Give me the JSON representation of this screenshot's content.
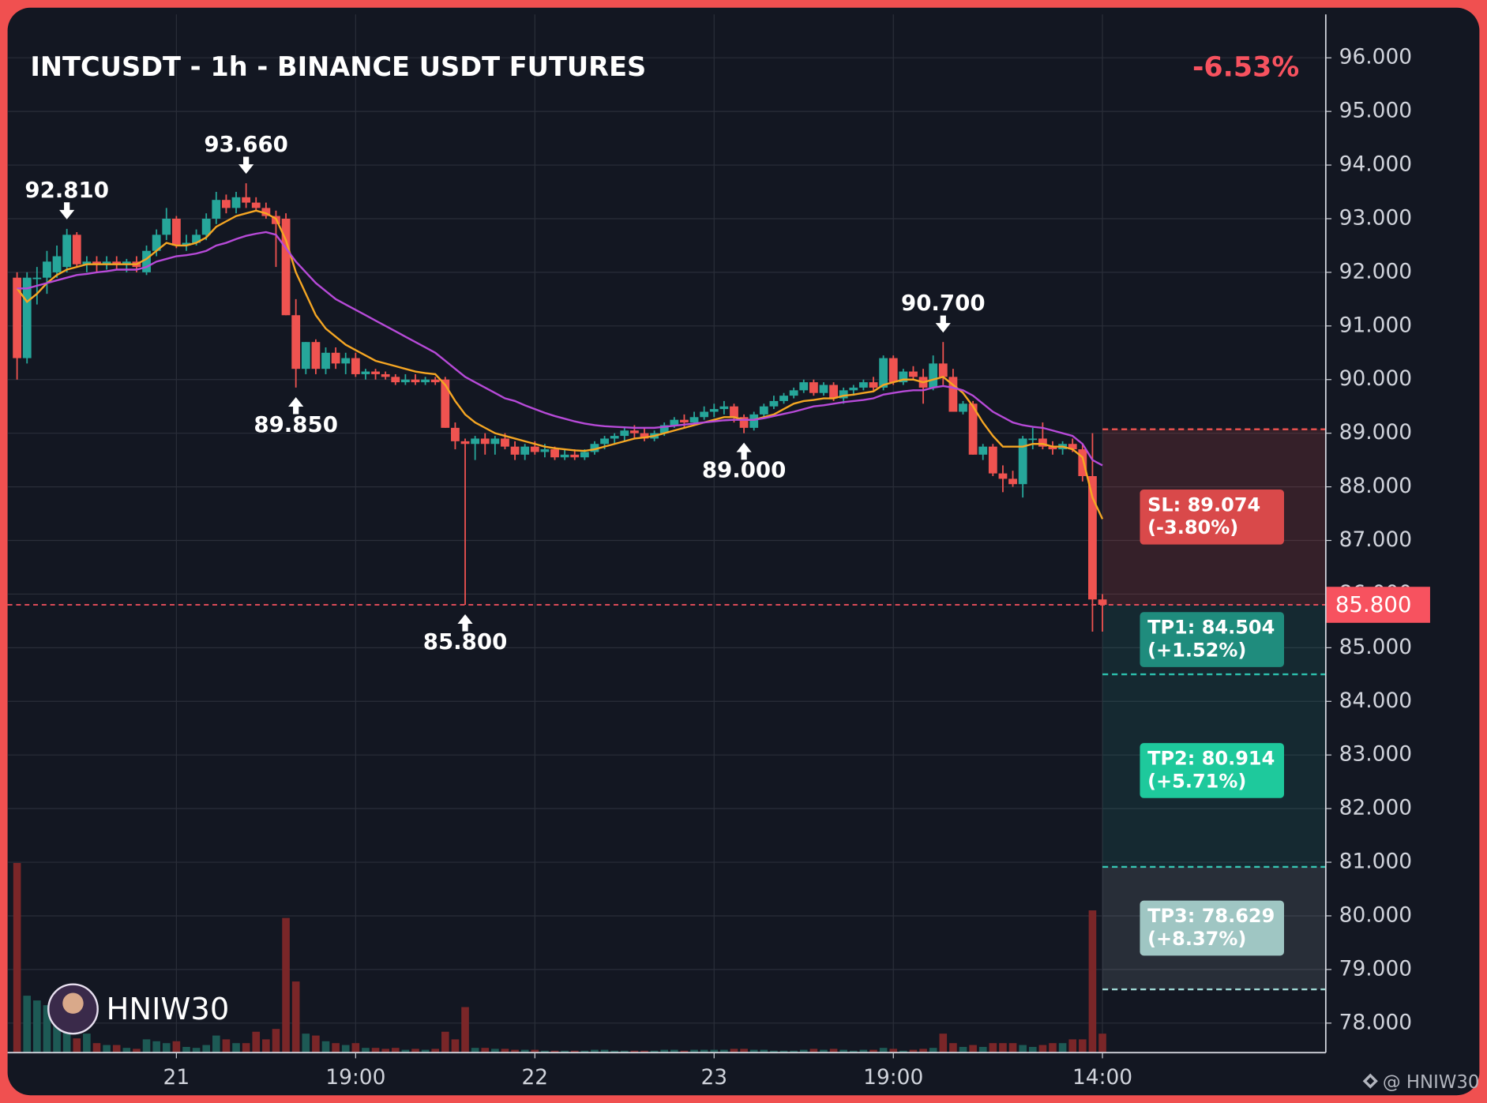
{
  "chart_data": {
    "type": "candlestick",
    "title": "INTCUSDT - 1h - BINANCE USDT FUTURES",
    "change": "-6.53%",
    "change_color": "#f7525f",
    "watermark": "HNIW30",
    "footer": "@ HNIW30",
    "up_color": "#26a69a",
    "down_color": "#ef5350",
    "ylim": [
      77.45,
      96.81
    ],
    "yticks": [
      {
        "value": 78,
        "label": "78.000"
      },
      {
        "value": 79,
        "label": "79.000"
      },
      {
        "value": 80,
        "label": "80.000"
      },
      {
        "value": 81,
        "label": "81.000"
      },
      {
        "value": 82,
        "label": "82.000"
      },
      {
        "value": 83,
        "label": "83.000"
      },
      {
        "value": 84,
        "label": "84.000"
      },
      {
        "value": 85,
        "label": "85.000"
      },
      {
        "value": 86,
        "label": "86.000"
      },
      {
        "value": 87,
        "label": "87.000"
      },
      {
        "value": 88,
        "label": "88.000"
      },
      {
        "value": 89,
        "label": "89.000"
      },
      {
        "value": 90,
        "label": "90.000"
      },
      {
        "value": 91,
        "label": "91.000"
      },
      {
        "value": 92,
        "label": "92.000"
      },
      {
        "value": 93,
        "label": "93.000"
      },
      {
        "value": 94,
        "label": "94.000"
      },
      {
        "value": 95,
        "label": "95.000"
      },
      {
        "value": 96,
        "label": "96.000"
      }
    ],
    "grid": true,
    "categories": [
      null,
      null,
      null,
      null,
      null,
      null,
      null,
      null,
      null,
      null,
      null,
      null,
      null,
      null,
      null,
      null,
      "21",
      null,
      null,
      null,
      null,
      null,
      null,
      null,
      null,
      null,
      null,
      null,
      null,
      null,
      null,
      null,
      null,
      null,
      "19:00",
      null,
      null,
      null,
      null,
      null,
      null,
      null,
      null,
      null,
      null,
      null,
      null,
      null,
      null,
      null,
      null,
      null,
      "22",
      null,
      null,
      null,
      null,
      null,
      null,
      null,
      null,
      null,
      null,
      null,
      null,
      null,
      null,
      null,
      null,
      null,
      "23",
      null,
      null,
      null,
      null,
      null,
      null,
      null,
      null,
      null,
      null,
      null,
      null,
      null,
      null,
      null,
      null,
      null,
      "19:00",
      null,
      null,
      null,
      null,
      null,
      null,
      null,
      null,
      null,
      null,
      null,
      null,
      null,
      null,
      null,
      null,
      null,
      null,
      null,
      null,
      "14:00"
    ],
    "open": [
      91.9,
      90.4,
      91.9,
      91.9,
      92.0,
      92.1,
      92.7,
      92.15,
      92.2,
      92.15,
      92.2,
      92.15,
      92.2,
      92.0,
      92.4,
      92.7,
      93.0,
      92.5,
      92.55,
      92.7,
      93.0,
      93.35,
      93.2,
      93.4,
      93.3,
      93.2,
      93.05,
      93.0,
      91.2,
      90.2,
      90.7,
      90.2,
      90.5,
      90.3,
      90.4,
      90.1,
      90.15,
      90.1,
      90.05,
      89.95,
      90.0,
      89.95,
      90.0,
      90.0,
      89.1,
      88.85,
      88.8,
      88.9,
      88.8,
      88.9,
      88.75,
      88.6,
      88.75,
      88.65,
      88.7,
      88.55,
      88.6,
      88.55,
      88.65,
      88.8,
      88.9,
      88.95,
      89.05,
      89.0,
      88.9,
      89.0,
      89.15,
      89.25,
      89.2,
      89.3,
      89.4,
      89.45,
      89.5,
      89.3,
      89.1,
      89.35,
      89.5,
      89.6,
      89.7,
      89.8,
      89.95,
      89.75,
      89.9,
      89.65,
      89.8,
      89.85,
      89.95,
      89.85,
      90.4,
      89.95,
      90.15,
      90.05,
      89.85,
      90.3,
      90.05,
      89.4,
      89.55,
      88.6,
      88.75,
      88.25,
      88.15,
      88.05,
      88.9,
      88.9,
      88.75,
      88.7,
      88.8,
      88.7,
      88.2,
      85.9
    ],
    "high": [
      92.0,
      92.0,
      92.1,
      92.4,
      92.5,
      92.81,
      92.75,
      92.3,
      92.3,
      92.3,
      92.3,
      92.25,
      92.3,
      92.5,
      92.8,
      93.2,
      93.05,
      92.7,
      92.8,
      93.1,
      93.5,
      93.45,
      93.5,
      93.66,
      93.4,
      93.3,
      93.15,
      93.1,
      91.5,
      90.7,
      90.75,
      90.6,
      90.6,
      90.5,
      90.5,
      90.2,
      90.2,
      90.15,
      90.1,
      90.1,
      90.1,
      90.05,
      90.05,
      90.05,
      89.2,
      88.9,
      88.95,
      89.0,
      88.95,
      89.0,
      88.85,
      88.8,
      88.85,
      88.8,
      88.75,
      88.7,
      88.7,
      88.7,
      88.85,
      88.95,
      89.0,
      89.1,
      89.15,
      89.1,
      89.05,
      89.2,
      89.3,
      89.35,
      89.4,
      89.5,
      89.55,
      89.6,
      89.55,
      89.35,
      89.4,
      89.55,
      89.7,
      89.75,
      89.85,
      90.0,
      90.0,
      89.95,
      89.95,
      89.85,
      89.9,
      90.0,
      90.05,
      90.45,
      90.45,
      90.2,
      90.25,
      90.2,
      90.45,
      90.7,
      90.2,
      89.6,
      89.6,
      88.8,
      88.8,
      88.4,
      88.3,
      88.95,
      89.1,
      89.2,
      88.85,
      88.85,
      88.9,
      88.8,
      89.0,
      86.0
    ],
    "low": [
      90.0,
      90.3,
      91.4,
      91.6,
      91.9,
      92.0,
      92.1,
      92.0,
      92.0,
      92.05,
      92.05,
      92.0,
      92.0,
      91.95,
      92.3,
      92.6,
      92.45,
      92.4,
      92.5,
      92.6,
      92.9,
      93.1,
      93.1,
      93.2,
      93.15,
      93.0,
      92.1,
      91.2,
      89.85,
      90.1,
      90.1,
      90.1,
      90.2,
      90.1,
      90.05,
      90.0,
      90.0,
      90.0,
      89.9,
      89.9,
      89.9,
      89.9,
      89.9,
      89.1,
      88.7,
      85.8,
      88.5,
      88.6,
      88.6,
      88.7,
      88.5,
      88.5,
      88.6,
      88.55,
      88.5,
      88.5,
      88.5,
      88.5,
      88.6,
      88.7,
      88.8,
      88.85,
      88.9,
      88.85,
      88.85,
      88.95,
      89.1,
      89.1,
      89.15,
      89.25,
      89.3,
      89.35,
      89.2,
      89.0,
      89.05,
      89.3,
      89.45,
      89.55,
      89.65,
      89.75,
      89.7,
      89.7,
      89.6,
      89.55,
      89.7,
      89.8,
      89.8,
      89.8,
      89.9,
      89.9,
      90.0,
      89.55,
      89.8,
      89.9,
      89.4,
      89.35,
      88.6,
      88.5,
      88.2,
      87.9,
      88.0,
      87.8,
      88.7,
      88.7,
      88.6,
      88.6,
      88.65,
      88.1,
      85.3,
      85.3
    ],
    "close": [
      90.4,
      91.9,
      91.9,
      92.2,
      92.3,
      92.7,
      92.15,
      92.2,
      92.15,
      92.2,
      92.15,
      92.2,
      92.1,
      92.4,
      92.7,
      93.0,
      92.5,
      92.55,
      92.7,
      93.0,
      93.35,
      93.2,
      93.4,
      93.3,
      93.2,
      93.05,
      92.9,
      91.2,
      90.2,
      90.7,
      90.2,
      90.5,
      90.3,
      90.4,
      90.1,
      90.15,
      90.1,
      90.05,
      89.95,
      90.0,
      89.95,
      90.0,
      89.95,
      89.1,
      88.85,
      88.8,
      88.9,
      88.8,
      88.9,
      88.75,
      88.6,
      88.75,
      88.65,
      88.7,
      88.55,
      88.6,
      88.55,
      88.65,
      88.8,
      88.9,
      88.95,
      89.05,
      89.0,
      88.9,
      89.0,
      89.15,
      89.25,
      89.2,
      89.3,
      89.4,
      89.45,
      89.5,
      89.3,
      89.1,
      89.35,
      89.5,
      89.6,
      89.7,
      89.8,
      89.95,
      89.75,
      89.9,
      89.65,
      89.8,
      89.85,
      89.95,
      89.85,
      90.4,
      89.95,
      90.15,
      90.05,
      89.85,
      90.3,
      90.05,
      89.4,
      89.55,
      88.6,
      88.75,
      88.25,
      88.15,
      88.05,
      88.9,
      88.9,
      88.75,
      88.7,
      88.8,
      88.7,
      88.2,
      85.9,
      85.8
    ],
    "volume": [
      200,
      60,
      55,
      50,
      45,
      40,
      15,
      20,
      10,
      8,
      8,
      5,
      4,
      14,
      12,
      10,
      12,
      6,
      5,
      8,
      18,
      14,
      10,
      10,
      22,
      14,
      25,
      142,
      75,
      20,
      18,
      12,
      10,
      8,
      10,
      5,
      5,
      4,
      5,
      3,
      4,
      3,
      4,
      22,
      14,
      48,
      5,
      5,
      4,
      4,
      3,
      3,
      3,
      2,
      2,
      2,
      2,
      2,
      3,
      3,
      2,
      2,
      2,
      2,
      2,
      3,
      3,
      2,
      3,
      3,
      3,
      3,
      4,
      4,
      3,
      3,
      2,
      2,
      2,
      3,
      4,
      3,
      4,
      3,
      2,
      3,
      3,
      5,
      4,
      2,
      3,
      4,
      5,
      20,
      10,
      6,
      8,
      6,
      10,
      10,
      10,
      8,
      6,
      8,
      10,
      10,
      14,
      14,
      150,
      20
    ],
    "volume_up_color": "#1d5a55",
    "volume_down_color": "#7a2628",
    "moving_averages": [
      {
        "color": "#f5a623",
        "values": [
          91.7,
          91.45,
          91.6,
          91.8,
          91.95,
          92.05,
          92.1,
          92.15,
          92.15,
          92.15,
          92.15,
          92.15,
          92.15,
          92.25,
          92.4,
          92.55,
          92.5,
          92.5,
          92.55,
          92.65,
          92.85,
          92.95,
          93.05,
          93.1,
          93.15,
          93.1,
          93.0,
          92.6,
          92.0,
          91.6,
          91.2,
          90.95,
          90.8,
          90.65,
          90.55,
          90.45,
          90.35,
          90.3,
          90.25,
          90.2,
          90.15,
          90.12,
          90.1,
          89.9,
          89.6,
          89.35,
          89.2,
          89.1,
          89.0,
          88.95,
          88.9,
          88.85,
          88.8,
          88.75,
          88.72,
          88.7,
          88.68,
          88.67,
          88.7,
          88.75,
          88.8,
          88.85,
          88.9,
          88.92,
          88.95,
          89.0,
          89.05,
          89.1,
          89.15,
          89.2,
          89.25,
          89.3,
          89.3,
          89.25,
          89.25,
          89.3,
          89.35,
          89.45,
          89.55,
          89.6,
          89.62,
          89.65,
          89.65,
          89.7,
          89.72,
          89.75,
          89.78,
          89.9,
          89.95,
          90.0,
          90.0,
          89.95,
          90.0,
          90.05,
          89.9,
          89.75,
          89.5,
          89.2,
          88.95,
          88.75,
          88.75,
          88.75,
          88.8,
          88.8,
          88.75,
          88.75,
          88.7,
          88.55,
          87.8,
          87.4
        ]
      },
      {
        "color": "#b74ad8",
        "values": [
          91.7,
          91.7,
          91.75,
          91.8,
          91.85,
          91.9,
          91.95,
          91.97,
          92.0,
          92.02,
          92.05,
          92.05,
          92.05,
          92.1,
          92.2,
          92.25,
          92.3,
          92.32,
          92.35,
          92.4,
          92.5,
          92.55,
          92.62,
          92.68,
          92.72,
          92.75,
          92.7,
          92.45,
          92.2,
          92.0,
          91.8,
          91.65,
          91.5,
          91.4,
          91.3,
          91.2,
          91.1,
          91.0,
          90.9,
          90.8,
          90.7,
          90.6,
          90.5,
          90.35,
          90.2,
          90.05,
          89.95,
          89.85,
          89.75,
          89.65,
          89.6,
          89.52,
          89.45,
          89.38,
          89.32,
          89.27,
          89.22,
          89.18,
          89.15,
          89.13,
          89.12,
          89.11,
          89.1,
          89.1,
          89.1,
          89.12,
          89.14,
          89.16,
          89.18,
          89.2,
          89.22,
          89.24,
          89.25,
          89.25,
          89.25,
          89.28,
          89.32,
          89.36,
          89.4,
          89.45,
          89.5,
          89.52,
          89.55,
          89.58,
          89.6,
          89.62,
          89.65,
          89.72,
          89.75,
          89.78,
          89.8,
          89.8,
          89.85,
          89.88,
          89.85,
          89.8,
          89.7,
          89.55,
          89.4,
          89.3,
          89.2,
          89.15,
          89.12,
          89.1,
          89.05,
          89.0,
          88.95,
          88.8,
          88.5,
          88.4
        ]
      }
    ],
    "markers": [
      {
        "candle": 5,
        "value": 92.81,
        "label": "92.810",
        "side": "above"
      },
      {
        "candle": 23,
        "value": 93.66,
        "label": "93.660",
        "side": "above"
      },
      {
        "candle": 28,
        "value": 89.85,
        "label": "89.850",
        "side": "below"
      },
      {
        "candle": 45,
        "value": 85.8,
        "label": "85.800",
        "side": "below"
      },
      {
        "candle": 73,
        "value": 89.0,
        "label": "89.000",
        "side": "below"
      },
      {
        "candle": 93,
        "value": 90.7,
        "label": "90.700",
        "side": "above"
      }
    ],
    "last_price": {
      "value": 85.8,
      "label": "85.800",
      "color": "#f7525f"
    },
    "levels": [
      {
        "name": "SL: 89.074",
        "change": "(-3.80%)",
        "value": 89.074,
        "color": "#d9494a",
        "zone_color": "rgba(239,83,80,0.16)",
        "line_color": "#ef5350"
      },
      {
        "name": "TP1: 84.504",
        "change": "(+1.52%)",
        "value": 84.504,
        "color": "#1f8c7d",
        "zone_color": "rgba(38,166,154,0.13)",
        "line_color": "#2ec4b0"
      },
      {
        "name": "TP2: 80.914",
        "change": "(+5.71%)",
        "value": 80.914,
        "color": "#1ec99c",
        "zone_color": "rgba(38,166,154,0.13)",
        "line_color": "#2ec4b0"
      },
      {
        "name": "TP3: 78.629",
        "change": "(+8.37%)",
        "value": 78.629,
        "color": "#9fc6c3",
        "zone_color": "rgba(200,215,225,0.12)",
        "line_color": "#9fd8d4"
      }
    ]
  }
}
